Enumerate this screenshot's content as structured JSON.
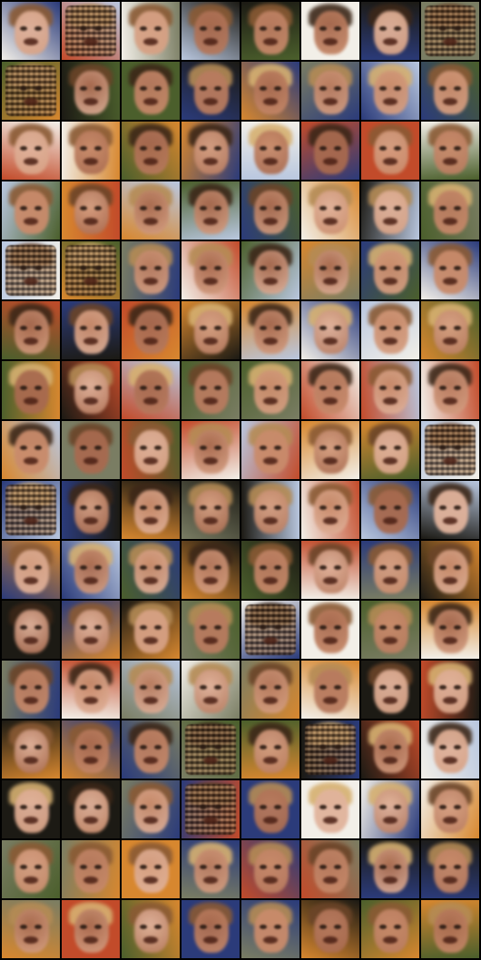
{
  "image": {
    "description_free": true,
    "grid": {
      "rows": 16,
      "cols": 8
    },
    "palette": {
      "background": "#000000",
      "skin": [
        "#c98b6b",
        "#d7a184",
        "#b87b5f",
        "#e1b39c",
        "#a86a4f"
      ],
      "hair": [
        "#6b4428",
        "#8a5a34",
        "#3c2718",
        "#b58b55",
        "#d6b071"
      ],
      "backgrounds": [
        "#f2efe8",
        "#7a7d63",
        "#1c1a14",
        "#d7872f",
        "#4b5f2c",
        "#b9c7df",
        "#2b3b7a",
        "#c24b2a"
      ]
    }
  }
}
